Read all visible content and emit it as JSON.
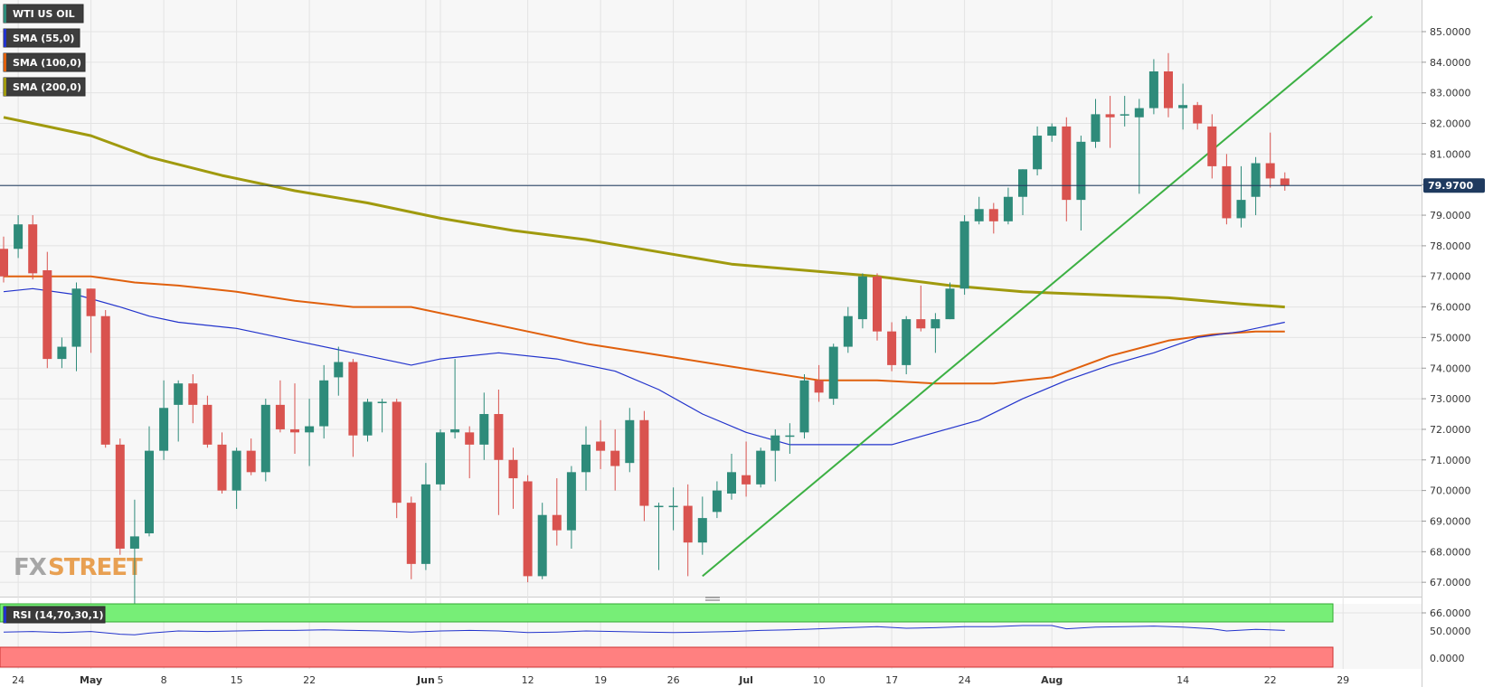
{
  "chart_data": {
    "type": "candlestick",
    "instrument": "WTI US OIL",
    "legend": [
      {
        "label": "WTI US OIL",
        "color": "#2e8b7a"
      },
      {
        "label": "SMA (55,0)",
        "color": "#2233cc"
      },
      {
        "label": "SMA (100,0)",
        "color": "#e0600d"
      },
      {
        "label": "SMA (200,0)",
        "color": "#a09a0e"
      }
    ],
    "last_price": {
      "value": 79.97,
      "label": "79.9700"
    },
    "y_ticks": [
      "85.0000",
      "84.0000",
      "83.0000",
      "82.0000",
      "81.0000",
      "80.0000",
      "79.0000",
      "78.0000",
      "77.0000",
      "76.0000",
      "75.0000",
      "74.0000",
      "73.0000",
      "72.0000",
      "71.0000",
      "70.0000",
      "69.0000",
      "68.0000",
      "67.0000",
      "66.0000"
    ],
    "ylim": [
      66,
      85.5
    ],
    "x_ticks": [
      {
        "label": "24",
        "index": 1,
        "bold": false
      },
      {
        "label": "May",
        "index": 6,
        "bold": true
      },
      {
        "label": "8",
        "index": 11,
        "bold": false
      },
      {
        "label": "15",
        "index": 16,
        "bold": false
      },
      {
        "label": "22",
        "index": 21,
        "bold": false
      },
      {
        "label": "Jun",
        "index": 29,
        "bold": true
      },
      {
        "label": "5",
        "index": 30,
        "bold": false
      },
      {
        "label": "12",
        "index": 36,
        "bold": false
      },
      {
        "label": "19",
        "index": 41,
        "bold": false
      },
      {
        "label": "26",
        "index": 46,
        "bold": false
      },
      {
        "label": "Jul",
        "index": 51,
        "bold": true
      },
      {
        "label": "10",
        "index": 56,
        "bold": false
      },
      {
        "label": "17",
        "index": 61,
        "bold": false
      },
      {
        "label": "24",
        "index": 66,
        "bold": false
      },
      {
        "label": "Aug",
        "index": 72,
        "bold": true
      },
      {
        "label": "14",
        "index": 81,
        "bold": false
      },
      {
        "label": "22",
        "index": 87,
        "bold": false
      },
      {
        "label": "29",
        "index": 92,
        "bold": false
      }
    ],
    "candles": [
      {
        "i": 0,
        "o": 77.9,
        "h": 78.3,
        "l": 76.8,
        "c": 77.0
      },
      {
        "i": 1,
        "o": 77.9,
        "h": 79.0,
        "l": 77.6,
        "c": 78.7
      },
      {
        "i": 2,
        "o": 78.7,
        "h": 79.0,
        "l": 76.9,
        "c": 77.1
      },
      {
        "i": 3,
        "o": 77.2,
        "h": 77.8,
        "l": 74.0,
        "c": 74.3
      },
      {
        "i": 4,
        "o": 74.3,
        "h": 75.0,
        "l": 74.0,
        "c": 74.7
      },
      {
        "i": 5,
        "o": 74.7,
        "h": 76.8,
        "l": 73.9,
        "c": 76.6
      },
      {
        "i": 6,
        "o": 76.6,
        "h": 76.6,
        "l": 74.5,
        "c": 75.7
      },
      {
        "i": 7,
        "o": 75.7,
        "h": 75.9,
        "l": 71.4,
        "c": 71.5
      },
      {
        "i": 8,
        "o": 71.5,
        "h": 71.7,
        "l": 67.9,
        "c": 68.1
      },
      {
        "i": 9,
        "o": 68.1,
        "h": 69.7,
        "l": 66.0,
        "c": 68.5
      },
      {
        "i": 10,
        "o": 68.6,
        "h": 72.1,
        "l": 68.5,
        "c": 71.3
      },
      {
        "i": 11,
        "o": 71.3,
        "h": 73.6,
        "l": 71.0,
        "c": 72.7
      },
      {
        "i": 12,
        "o": 72.8,
        "h": 73.6,
        "l": 71.6,
        "c": 73.5
      },
      {
        "i": 13,
        "o": 73.5,
        "h": 73.8,
        "l": 72.2,
        "c": 72.8
      },
      {
        "i": 14,
        "o": 72.8,
        "h": 73.1,
        "l": 71.4,
        "c": 71.5
      },
      {
        "i": 15,
        "o": 71.5,
        "h": 71.9,
        "l": 69.9,
        "c": 70.0
      },
      {
        "i": 16,
        "o": 70.0,
        "h": 71.4,
        "l": 69.4,
        "c": 71.3
      },
      {
        "i": 17,
        "o": 71.3,
        "h": 71.7,
        "l": 70.5,
        "c": 70.6
      },
      {
        "i": 18,
        "o": 70.6,
        "h": 73.0,
        "l": 70.3,
        "c": 72.8
      },
      {
        "i": 19,
        "o": 72.8,
        "h": 73.6,
        "l": 71.9,
        "c": 72.0
      },
      {
        "i": 20,
        "o": 72.0,
        "h": 73.5,
        "l": 71.2,
        "c": 71.9
      },
      {
        "i": 21,
        "o": 71.9,
        "h": 73.0,
        "l": 70.8,
        "c": 72.1
      },
      {
        "i": 22,
        "o": 72.1,
        "h": 74.1,
        "l": 71.7,
        "c": 73.6
      },
      {
        "i": 23,
        "o": 73.7,
        "h": 74.7,
        "l": 73.1,
        "c": 74.2
      },
      {
        "i": 24,
        "o": 74.2,
        "h": 74.3,
        "l": 71.1,
        "c": 71.8
      },
      {
        "i": 25,
        "o": 71.8,
        "h": 73.0,
        "l": 71.6,
        "c": 72.9
      },
      {
        "i": 26,
        "o": 72.9,
        "h": 73.0,
        "l": 71.9,
        "c": 72.9
      },
      {
        "i": 27,
        "o": 72.9,
        "h": 73.0,
        "l": 69.1,
        "c": 69.6
      },
      {
        "i": 28,
        "o": 69.6,
        "h": 69.8,
        "l": 67.1,
        "c": 67.6
      },
      {
        "i": 29,
        "o": 67.6,
        "h": 70.9,
        "l": 67.4,
        "c": 70.2
      },
      {
        "i": 30,
        "o": 70.2,
        "h": 72.0,
        "l": 70.0,
        "c": 71.9
      },
      {
        "i": 31,
        "o": 71.9,
        "h": 74.3,
        "l": 71.7,
        "c": 72.0
      },
      {
        "i": 32,
        "o": 71.9,
        "h": 72.1,
        "l": 70.4,
        "c": 71.5
      },
      {
        "i": 33,
        "o": 71.5,
        "h": 73.2,
        "l": 71.0,
        "c": 72.5
      },
      {
        "i": 34,
        "o": 72.5,
        "h": 73.3,
        "l": 69.2,
        "c": 71.0
      },
      {
        "i": 35,
        "o": 71.0,
        "h": 71.4,
        "l": 69.4,
        "c": 70.4
      },
      {
        "i": 36,
        "o": 70.3,
        "h": 70.5,
        "l": 67.0,
        "c": 67.2
      },
      {
        "i": 37,
        "o": 67.2,
        "h": 69.6,
        "l": 67.1,
        "c": 69.2
      },
      {
        "i": 38,
        "o": 69.2,
        "h": 70.4,
        "l": 68.2,
        "c": 68.7
      },
      {
        "i": 39,
        "o": 68.7,
        "h": 70.8,
        "l": 68.1,
        "c": 70.6
      },
      {
        "i": 40,
        "o": 70.6,
        "h": 72.1,
        "l": 70.0,
        "c": 71.5
      },
      {
        "i": 41,
        "o": 71.6,
        "h": 72.3,
        "l": 70.7,
        "c": 71.3
      },
      {
        "i": 42,
        "o": 71.3,
        "h": 72.0,
        "l": 70.0,
        "c": 70.8
      },
      {
        "i": 43,
        "o": 70.9,
        "h": 72.7,
        "l": 70.6,
        "c": 72.3
      },
      {
        "i": 44,
        "o": 72.3,
        "h": 72.6,
        "l": 69.0,
        "c": 69.5
      },
      {
        "i": 45,
        "o": 69.5,
        "h": 69.6,
        "l": 67.4,
        "c": 69.5
      },
      {
        "i": 46,
        "o": 69.5,
        "h": 70.1,
        "l": 68.7,
        "c": 69.5
      },
      {
        "i": 47,
        "o": 69.5,
        "h": 70.2,
        "l": 67.2,
        "c": 68.3
      },
      {
        "i": 48,
        "o": 68.3,
        "h": 69.8,
        "l": 67.9,
        "c": 69.1
      },
      {
        "i": 49,
        "o": 69.3,
        "h": 70.3,
        "l": 69.1,
        "c": 70.0
      },
      {
        "i": 50,
        "o": 69.9,
        "h": 71.2,
        "l": 69.7,
        "c": 70.6
      },
      {
        "i": 51,
        "o": 70.5,
        "h": 71.6,
        "l": 69.8,
        "c": 70.2
      },
      {
        "i": 52,
        "o": 70.2,
        "h": 71.4,
        "l": 70.1,
        "c": 71.3
      },
      {
        "i": 53,
        "o": 71.3,
        "h": 72.0,
        "l": 70.3,
        "c": 71.8
      },
      {
        "i": 54,
        "o": 71.8,
        "h": 72.2,
        "l": 71.2,
        "c": 71.8
      },
      {
        "i": 55,
        "o": 71.9,
        "h": 73.8,
        "l": 71.7,
        "c": 73.6
      },
      {
        "i": 56,
        "o": 73.6,
        "h": 74.1,
        "l": 72.9,
        "c": 73.2
      },
      {
        "i": 57,
        "o": 73.0,
        "h": 74.8,
        "l": 72.8,
        "c": 74.7
      },
      {
        "i": 58,
        "o": 74.7,
        "h": 76.0,
        "l": 74.5,
        "c": 75.7
      },
      {
        "i": 59,
        "o": 75.6,
        "h": 77.1,
        "l": 75.3,
        "c": 77.0
      },
      {
        "i": 60,
        "o": 77.0,
        "h": 77.1,
        "l": 74.9,
        "c": 75.2
      },
      {
        "i": 61,
        "o": 75.2,
        "h": 75.5,
        "l": 73.9,
        "c": 74.1
      },
      {
        "i": 62,
        "o": 74.1,
        "h": 75.7,
        "l": 73.8,
        "c": 75.6
      },
      {
        "i": 63,
        "o": 75.6,
        "h": 76.7,
        "l": 75.2,
        "c": 75.3
      },
      {
        "i": 64,
        "o": 75.3,
        "h": 75.8,
        "l": 74.5,
        "c": 75.6
      },
      {
        "i": 65,
        "o": 75.6,
        "h": 76.8,
        "l": 75.6,
        "c": 76.6
      },
      {
        "i": 66,
        "o": 76.6,
        "h": 79.0,
        "l": 76.4,
        "c": 78.8
      },
      {
        "i": 67,
        "o": 78.8,
        "h": 79.6,
        "l": 78.7,
        "c": 79.2
      },
      {
        "i": 68,
        "o": 79.2,
        "h": 79.4,
        "l": 78.4,
        "c": 78.8
      },
      {
        "i": 69,
        "o": 78.8,
        "h": 79.9,
        "l": 78.7,
        "c": 79.6
      },
      {
        "i": 70,
        "o": 79.6,
        "h": 80.5,
        "l": 79.0,
        "c": 80.5
      },
      {
        "i": 71,
        "o": 80.5,
        "h": 81.9,
        "l": 80.3,
        "c": 81.6
      },
      {
        "i": 72,
        "o": 81.6,
        "h": 82.0,
        "l": 81.4,
        "c": 81.9
      },
      {
        "i": 73,
        "o": 81.9,
        "h": 82.2,
        "l": 78.8,
        "c": 79.5
      },
      {
        "i": 74,
        "o": 79.5,
        "h": 81.6,
        "l": 78.5,
        "c": 81.4
      },
      {
        "i": 75,
        "o": 81.4,
        "h": 82.8,
        "l": 81.2,
        "c": 82.3
      },
      {
        "i": 76,
        "o": 82.3,
        "h": 82.9,
        "l": 81.2,
        "c": 82.2
      },
      {
        "i": 77,
        "o": 82.3,
        "h": 82.9,
        "l": 81.9,
        "c": 82.3
      },
      {
        "i": 78,
        "o": 82.2,
        "h": 82.8,
        "l": 79.7,
        "c": 82.5
      },
      {
        "i": 79,
        "o": 82.5,
        "h": 84.1,
        "l": 82.3,
        "c": 83.7
      },
      {
        "i": 80,
        "o": 83.7,
        "h": 84.3,
        "l": 82.2,
        "c": 82.5
      },
      {
        "i": 81,
        "o": 82.5,
        "h": 83.3,
        "l": 81.8,
        "c": 82.6
      },
      {
        "i": 82,
        "o": 82.6,
        "h": 82.7,
        "l": 81.8,
        "c": 82.0
      },
      {
        "i": 83,
        "o": 81.9,
        "h": 82.3,
        "l": 80.2,
        "c": 80.6
      },
      {
        "i": 84,
        "o": 80.6,
        "h": 81.0,
        "l": 78.7,
        "c": 78.9
      },
      {
        "i": 85,
        "o": 78.9,
        "h": 80.6,
        "l": 78.6,
        "c": 79.5
      },
      {
        "i": 86,
        "o": 79.6,
        "h": 80.9,
        "l": 79.0,
        "c": 80.7
      },
      {
        "i": 87,
        "o": 80.7,
        "h": 81.7,
        "l": 79.9,
        "c": 80.2
      },
      {
        "i": 88,
        "o": 80.2,
        "h": 80.4,
        "l": 79.8,
        "c": 79.97
      }
    ],
    "sma55": [
      [
        0,
        76.5
      ],
      [
        2,
        76.6
      ],
      [
        5,
        76.4
      ],
      [
        8,
        76.0
      ],
      [
        10,
        75.7
      ],
      [
        12,
        75.5
      ],
      [
        16,
        75.3
      ],
      [
        20,
        74.9
      ],
      [
        24,
        74.5
      ],
      [
        28,
        74.1
      ],
      [
        30,
        74.3
      ],
      [
        34,
        74.5
      ],
      [
        38,
        74.3
      ],
      [
        42,
        73.9
      ],
      [
        45,
        73.3
      ],
      [
        48,
        72.5
      ],
      [
        51,
        71.9
      ],
      [
        54,
        71.5
      ],
      [
        58,
        71.5
      ],
      [
        61,
        71.5
      ],
      [
        64,
        71.9
      ],
      [
        67,
        72.3
      ],
      [
        70,
        73.0
      ],
      [
        73,
        73.6
      ],
      [
        76,
        74.1
      ],
      [
        79,
        74.5
      ],
      [
        82,
        75.0
      ],
      [
        85,
        75.2
      ],
      [
        88,
        75.5
      ]
    ],
    "sma100": [
      [
        0,
        77.0
      ],
      [
        3,
        77.0
      ],
      [
        6,
        77.0
      ],
      [
        9,
        76.8
      ],
      [
        12,
        76.7
      ],
      [
        16,
        76.5
      ],
      [
        20,
        76.2
      ],
      [
        24,
        76.0
      ],
      [
        28,
        76.0
      ],
      [
        32,
        75.6
      ],
      [
        36,
        75.2
      ],
      [
        40,
        74.8
      ],
      [
        44,
        74.5
      ],
      [
        48,
        74.2
      ],
      [
        52,
        73.9
      ],
      [
        56,
        73.6
      ],
      [
        60,
        73.6
      ],
      [
        64,
        73.5
      ],
      [
        68,
        73.5
      ],
      [
        72,
        73.7
      ],
      [
        76,
        74.4
      ],
      [
        80,
        74.9
      ],
      [
        83,
        75.1
      ],
      [
        86,
        75.2
      ],
      [
        88,
        75.2
      ]
    ],
    "sma200": [
      [
        0,
        82.2
      ],
      [
        3,
        81.9
      ],
      [
        6,
        81.6
      ],
      [
        10,
        80.9
      ],
      [
        15,
        80.3
      ],
      [
        20,
        79.8
      ],
      [
        25,
        79.4
      ],
      [
        30,
        78.9
      ],
      [
        35,
        78.5
      ],
      [
        40,
        78.2
      ],
      [
        45,
        77.8
      ],
      [
        50,
        77.4
      ],
      [
        55,
        77.2
      ],
      [
        60,
        77.0
      ],
      [
        65,
        76.7
      ],
      [
        70,
        76.5
      ],
      [
        75,
        76.4
      ],
      [
        80,
        76.3
      ],
      [
        85,
        76.1
      ],
      [
        88,
        76.0
      ]
    ],
    "trendline": {
      "from": [
        48,
        67.2
      ],
      "to": [
        94,
        85.5
      ]
    },
    "rsi": {
      "label": "RSI (14,70,30,1)",
      "y_ticks": [
        "50.0000",
        "0.0000"
      ],
      "values": [
        [
          0,
          48
        ],
        [
          2,
          49
        ],
        [
          4,
          47
        ],
        [
          6,
          49
        ],
        [
          8,
          44
        ],
        [
          9,
          43
        ],
        [
          10,
          46
        ],
        [
          12,
          50
        ],
        [
          14,
          49
        ],
        [
          16,
          50
        ],
        [
          18,
          51
        ],
        [
          20,
          51
        ],
        [
          22,
          52
        ],
        [
          24,
          51
        ],
        [
          26,
          50
        ],
        [
          28,
          48
        ],
        [
          30,
          50
        ],
        [
          32,
          51
        ],
        [
          34,
          50
        ],
        [
          36,
          47
        ],
        [
          38,
          48
        ],
        [
          40,
          50
        ],
        [
          42,
          49
        ],
        [
          44,
          48
        ],
        [
          46,
          47
        ],
        [
          48,
          48
        ],
        [
          50,
          49
        ],
        [
          52,
          51
        ],
        [
          54,
          52
        ],
        [
          56,
          54
        ],
        [
          58,
          56
        ],
        [
          60,
          58
        ],
        [
          62,
          55
        ],
        [
          64,
          56
        ],
        [
          66,
          58
        ],
        [
          68,
          58
        ],
        [
          70,
          60
        ],
        [
          72,
          60
        ],
        [
          73,
          54
        ],
        [
          75,
          57
        ],
        [
          77,
          58
        ],
        [
          79,
          59
        ],
        [
          81,
          57
        ],
        [
          83,
          54
        ],
        [
          84,
          50
        ],
        [
          86,
          53
        ],
        [
          88,
          51
        ]
      ]
    }
  },
  "watermark": {
    "part1": "FX",
    "part2": "STREET"
  }
}
